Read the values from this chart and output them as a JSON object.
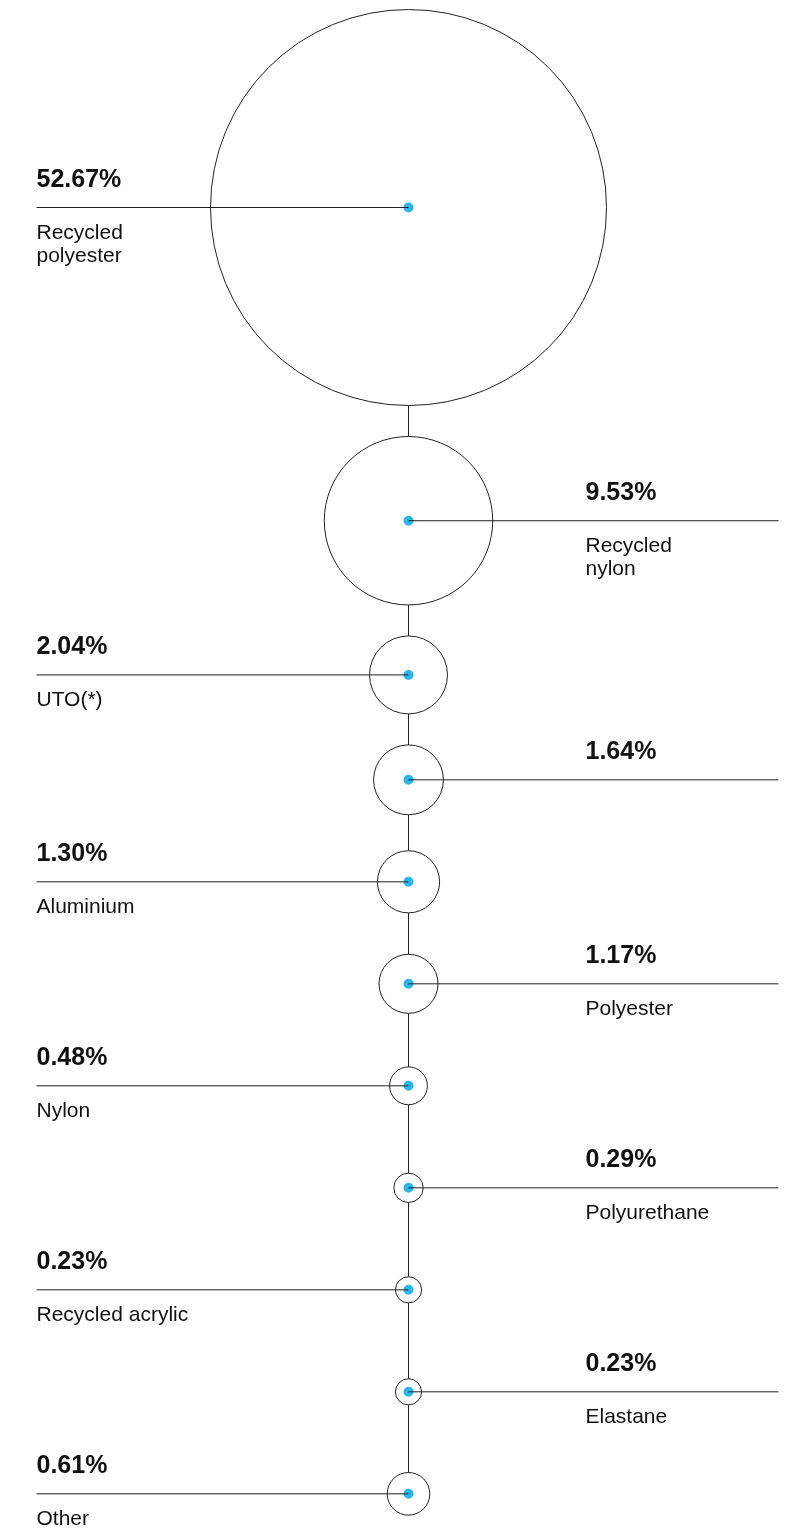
{
  "chart_data": {
    "type": "other",
    "categories": [
      "Recycled\npolyester",
      "Recycled\nnylon",
      "UTO(*)",
      null,
      "Aluminium",
      "Polyester",
      "Nylon",
      "Polyurethane",
      "Recycled acrylic",
      "Elastane",
      "Other"
    ],
    "values": [
      52.67,
      9.53,
      2.04,
      1.64,
      1.3,
      1.17,
      0.48,
      0.29,
      0.23,
      0.23,
      0.61
    ],
    "value_labels": [
      "52.67%",
      "9.53%",
      "2.04%",
      "1.64%",
      "1.30%",
      "1.17%",
      "0.48%",
      "0.29%",
      "0.23%",
      "0.23%",
      "0.61%"
    ],
    "data_labels": true,
    "color": "#2bb5ea"
  }
}
